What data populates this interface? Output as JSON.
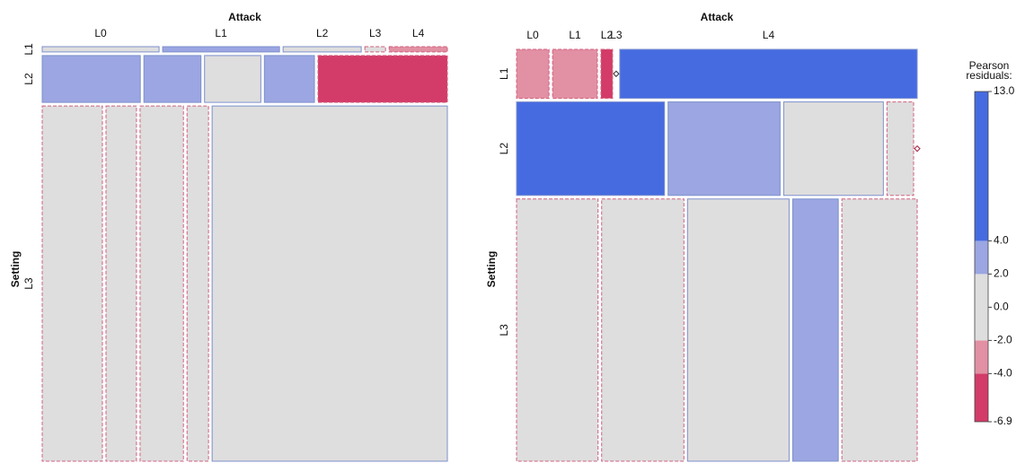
{
  "chart_data": [
    {
      "type": "mosaic",
      "title": "Attack",
      "y_title": "Setting",
      "columns": [
        "L0",
        "L1",
        "L2",
        "L3",
        "L4"
      ],
      "rows": [
        {
          "name": "L1",
          "height": 1.3,
          "shares": [
            29.9,
            29.9,
            20.0,
            5.3,
            14.9
          ],
          "residuals": [
            1,
            3,
            1,
            -1,
            -3
          ]
        },
        {
          "name": "L2",
          "height": 11.5,
          "shares": [
            25.1,
            14.6,
            14.4,
            12.8,
            33.1
          ],
          "residuals": [
            3,
            3,
            1,
            3,
            -6
          ]
        },
        {
          "name": "L3",
          "height": 87.2,
          "shares": [
            15.4,
            7.8,
            11.1,
            5.5,
            60.2
          ],
          "residuals": [
            -1,
            -1,
            -1,
            -1,
            1
          ]
        }
      ]
    },
    {
      "type": "mosaic",
      "title": "Attack",
      "y_title": "Setting",
      "columns": [
        "L0",
        "L1",
        "L2",
        "L3",
        "L4"
      ],
      "rows": [
        {
          "name": "L1",
          "height": 12.1,
          "shares": [
            8.4,
            11.6,
            3.0,
            0,
            77.0
          ],
          "residuals": [
            -3,
            -3,
            -5,
            1,
            13
          ]
        },
        {
          "name": "L2",
          "height": 23.1,
          "shares": [
            38.3,
            29.0,
            25.8,
            6.9,
            0
          ],
          "residuals": [
            8,
            3,
            1,
            -1,
            -3
          ]
        },
        {
          "name": "L3",
          "height": 64.8,
          "shares": [
            21.1,
            21.3,
            26.3,
            11.8,
            19.5
          ],
          "residuals": [
            -1,
            -1,
            1,
            3,
            -1
          ]
        }
      ]
    }
  ],
  "legend": {
    "title": [
      "Pearson",
      "residuals:"
    ],
    "lim": [
      -6.9,
      13
    ],
    "ticks": [
      {
        "value": 13,
        "label": "13.0"
      },
      {
        "value": 4,
        "label": "4.0"
      },
      {
        "value": 2,
        "label": "2.0"
      },
      {
        "value": 0,
        "label": "0.0"
      },
      {
        "value": -2,
        "label": "-2.0"
      },
      {
        "value": -4,
        "label": "-4.0"
      },
      {
        "value": -6.9,
        "label": "-6.9"
      }
    ],
    "breaks": [
      -4,
      -2,
      2,
      4
    ],
    "colors": [
      "#d33b68",
      "#e290a3",
      "#dedede",
      "#9ba6e2",
      "#466be1"
    ],
    "negative_border": "#d0607f",
    "positive_border": "#7d90cc"
  }
}
